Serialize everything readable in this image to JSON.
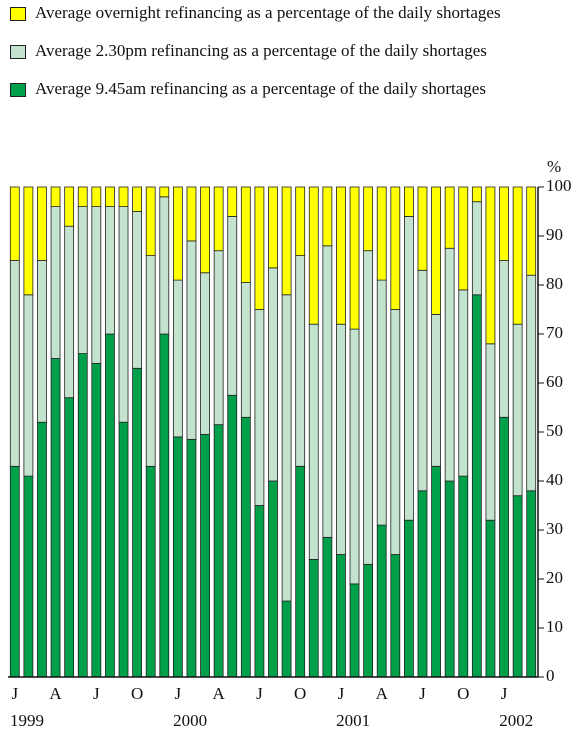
{
  "chart_data": {
    "type": "stacked-bar",
    "y_unit_label": "%",
    "categories": [
      "J",
      null,
      null,
      "A",
      null,
      null,
      "J",
      null,
      null,
      "O",
      null,
      null,
      "J",
      null,
      null,
      "A",
      null,
      null,
      "J",
      null,
      null,
      "O",
      null,
      null,
      "J",
      null,
      null,
      "A",
      null,
      null,
      "J",
      null,
      null,
      "O",
      null,
      null,
      "J",
      null,
      null
    ],
    "years": [
      "1999",
      "2000",
      "2001",
      "2002"
    ],
    "series": [
      {
        "name": "Average overnight refinancing as a percentage of the daily shortages",
        "color": "#ffff00",
        "values": [
          15,
          22,
          15,
          4,
          8,
          4,
          4,
          4,
          4,
          5,
          14,
          2,
          19,
          11,
          17.5,
          13,
          6,
          19.5,
          25,
          16.5,
          22,
          14,
          28,
          12,
          28,
          29,
          13,
          19,
          25,
          6,
          17,
          26,
          12.5,
          21,
          3,
          32,
          15,
          28,
          18
        ]
      },
      {
        "name": "Average 2.30pm refinancing as a percentage of the daily shortages",
        "color": "#c4e3cf",
        "values": [
          42,
          37,
          33,
          31,
          35,
          30,
          32,
          26,
          44,
          32,
          43,
          28,
          32,
          40.5,
          33,
          35.5,
          36.5,
          27.5,
          40,
          43.5,
          62.5,
          43,
          48,
          59.5,
          47,
          52,
          64,
          50,
          50,
          62,
          45,
          31,
          47.5,
          38,
          19,
          36,
          32,
          35,
          44
        ]
      },
      {
        "name": "Average 9.45am refinancing as a percentage of the daily shortages",
        "color": "#00a04a",
        "values": [
          43,
          41,
          52,
          65,
          57,
          66,
          64,
          70,
          52,
          63,
          43,
          70,
          49,
          48.5,
          49.5,
          51.5,
          57.5,
          53,
          35,
          40,
          15.5,
          43,
          24,
          28.5,
          25,
          19,
          23,
          31,
          25,
          32,
          38,
          43,
          40,
          41,
          78,
          32,
          53,
          37,
          38
        ]
      }
    ],
    "ylim": [
      0,
      100
    ],
    "yticks": [
      0,
      10,
      20,
      30,
      40,
      50,
      60,
      70,
      80,
      90,
      100
    ]
  }
}
